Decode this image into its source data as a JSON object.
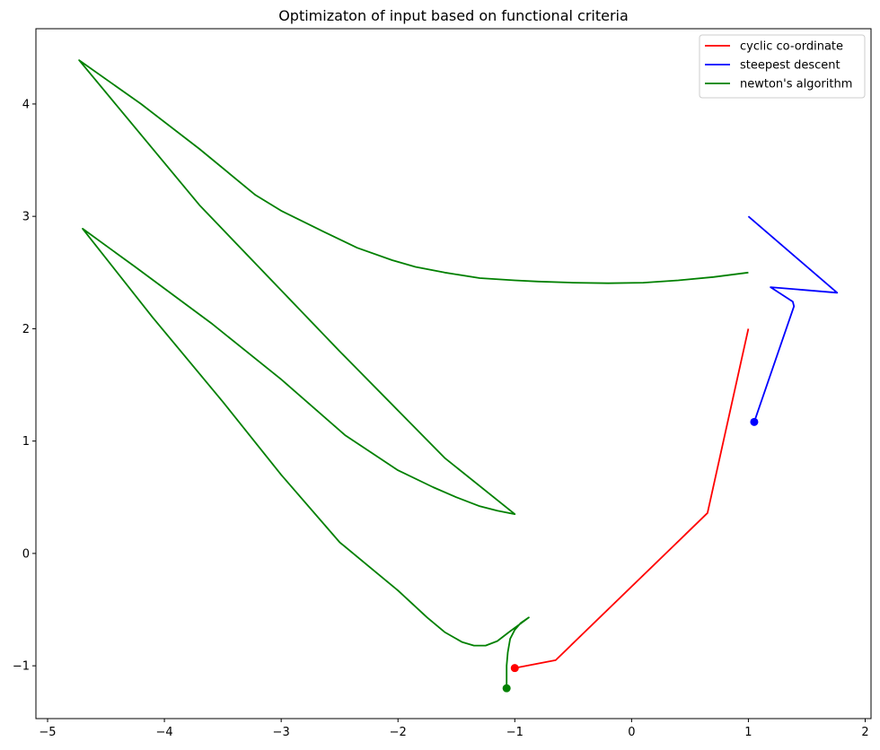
{
  "chart_data": {
    "type": "line",
    "title": "Optimizaton of input based on functional criteria",
    "xlabel": "",
    "ylabel": "",
    "xlim": [
      -5.1,
      2.05
    ],
    "ylim": [
      -1.47,
      4.67
    ],
    "x_ticks": [
      -5,
      -4,
      -3,
      -2,
      -1,
      0,
      1,
      2
    ],
    "y_ticks": [
      -1,
      0,
      1,
      2,
      3,
      4
    ],
    "x_tick_labels": [
      "−5",
      "−4",
      "−3",
      "−2",
      "−1",
      "0",
      "1",
      "2"
    ],
    "y_tick_labels": [
      "−1",
      "0",
      "1",
      "2",
      "3",
      "4"
    ],
    "grid": false,
    "legend_position": "top-right",
    "series": [
      {
        "name": "cyclic co-ordinate",
        "color": "#ff0000",
        "points": [
          [
            1.0,
            2.0
          ],
          [
            0.65,
            0.36
          ],
          [
            -0.65,
            -0.95
          ],
          [
            -1.0,
            -1.02
          ]
        ],
        "end_marker": [
          -1.0,
          -1.02
        ]
      },
      {
        "name": "steepest descent",
        "color": "#0000ff",
        "points": [
          [
            1.0,
            3.0
          ],
          [
            1.76,
            2.32
          ],
          [
            1.19,
            2.37
          ],
          [
            1.38,
            2.24
          ],
          [
            1.39,
            2.2
          ],
          [
            1.05,
            1.17
          ]
        ],
        "end_marker": [
          1.05,
          1.17
        ]
      },
      {
        "name": "newton's algorithm",
        "color": "#008000",
        "points": [
          [
            1.0,
            2.5
          ],
          [
            0.7,
            2.46
          ],
          [
            0.4,
            2.43
          ],
          [
            0.1,
            2.41
          ],
          [
            -0.2,
            2.405
          ],
          [
            -0.5,
            2.41
          ],
          [
            -0.8,
            2.42
          ],
          [
            -1.0,
            2.43
          ],
          [
            -1.3,
            2.45
          ],
          [
            -1.6,
            2.5
          ],
          [
            -1.85,
            2.55
          ],
          [
            -2.05,
            2.61
          ],
          [
            -2.35,
            2.72
          ],
          [
            -2.65,
            2.87
          ],
          [
            -3.0,
            3.05
          ],
          [
            -3.22,
            3.19
          ],
          [
            -3.7,
            3.6
          ],
          [
            -4.2,
            4.0
          ],
          [
            -4.73,
            4.39
          ],
          [
            -3.7,
            3.1
          ],
          [
            -2.5,
            1.8
          ],
          [
            -1.6,
            0.85
          ],
          [
            -1.0,
            0.35
          ],
          [
            -1.15,
            0.38
          ],
          [
            -1.3,
            0.42
          ],
          [
            -1.5,
            0.5
          ],
          [
            -1.7,
            0.59
          ],
          [
            -2.0,
            0.74
          ],
          [
            -2.45,
            1.05
          ],
          [
            -3.0,
            1.55
          ],
          [
            -3.6,
            2.05
          ],
          [
            -4.25,
            2.55
          ],
          [
            -4.7,
            2.89
          ],
          [
            -4.1,
            2.1
          ],
          [
            -3.5,
            1.35
          ],
          [
            -3.0,
            0.7
          ],
          [
            -2.5,
            0.1
          ],
          [
            -2.0,
            -0.33
          ],
          [
            -1.75,
            -0.57
          ],
          [
            -1.6,
            -0.7
          ],
          [
            -1.45,
            -0.79
          ],
          [
            -1.35,
            -0.82
          ],
          [
            -1.25,
            -0.82
          ],
          [
            -1.15,
            -0.78
          ],
          [
            -1.05,
            -0.7
          ],
          [
            -0.97,
            -0.64
          ],
          [
            -0.88,
            -0.57
          ],
          [
            -0.95,
            -0.62
          ],
          [
            -1.0,
            -0.68
          ],
          [
            -1.04,
            -0.76
          ],
          [
            -1.06,
            -0.88
          ],
          [
            -1.07,
            -1.0
          ],
          [
            -1.07,
            -1.2
          ]
        ],
        "end_marker": [
          -1.07,
          -1.2
        ]
      }
    ]
  }
}
